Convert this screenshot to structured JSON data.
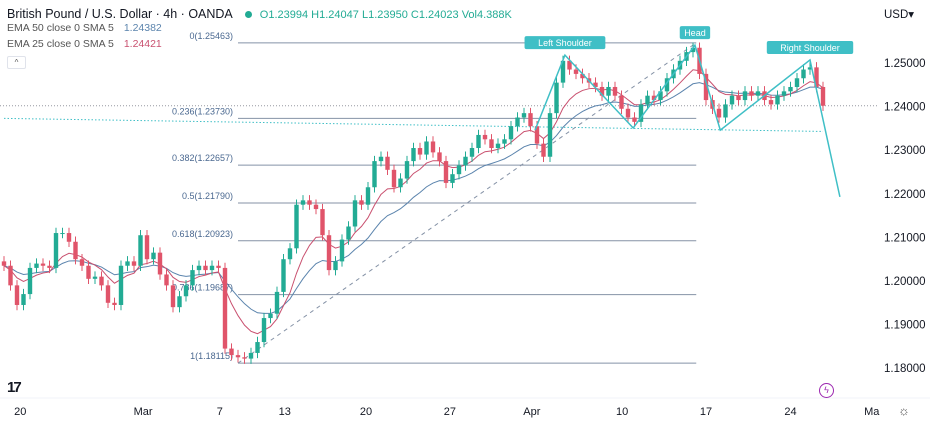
{
  "header": {
    "title": "British Pound / U.S. Dollar · 4h · OANDA",
    "open": "O1.23994",
    "high": "H1.24047",
    "low": "L1.23950",
    "close": "C1.24023",
    "volume": "Vol4.388K",
    "currency": "USD",
    "currency_caret": "▾",
    "collapse_glyph": "^"
  },
  "indicators": [
    {
      "label": "EMA 50 close 0 SMA 5",
      "value": "1.24382",
      "color": "#5b84ad"
    },
    {
      "label": "EMA 25 close 0 SMA 5",
      "value": "1.24421",
      "color": "#c9506f"
    }
  ],
  "colors": {
    "up": "#22ab94",
    "down": "#e0546a",
    "pattern": "#3fbfc6",
    "fib": "#8592a6",
    "grid": "#b2b5be"
  },
  "chart_data": {
    "type": "candlestick",
    "symbol": "GBPUSD",
    "ylim": [
      1.1755,
      1.2585
    ],
    "y_ticks": [
      "1.25000",
      "1.24000",
      "1.23000",
      "1.22000",
      "1.21000",
      "1.20000",
      "1.19000",
      "1.18000"
    ],
    "y_tick_values": [
      1.25,
      1.24,
      1.23,
      1.22,
      1.21,
      1.2,
      1.19,
      1.18
    ],
    "x_ticks": [
      {
        "label": "20",
        "index": 2.5
      },
      {
        "label": "Mar",
        "index": 21.4
      },
      {
        "label": "7",
        "index": 33.2
      },
      {
        "label": "13",
        "index": 43.2
      },
      {
        "label": "20",
        "index": 55.7
      },
      {
        "label": "27",
        "index": 68.6
      },
      {
        "label": "Apr",
        "index": 81.2
      },
      {
        "label": "10",
        "index": 95.1
      },
      {
        "label": "17",
        "index": 108
      },
      {
        "label": "24",
        "index": 121
      },
      {
        "label": "Ma",
        "index": 133.5
      }
    ],
    "first_open": 1.2045,
    "close": [
      1.2035,
      1.199,
      1.1945,
      1.197,
      1.203,
      1.204,
      1.2035,
      1.203,
      1.211,
      1.211,
      1.209,
      1.205,
      1.2035,
      1.2005,
      1.201,
      1.199,
      1.195,
      1.1945,
      1.2035,
      1.2045,
      1.2035,
      1.2105,
      1.205,
      1.2065,
      1.2015,
      1.199,
      1.194,
      1.1965,
      1.199,
      1.2025,
      1.2035,
      1.2025,
      1.2035,
      1.203,
      1.1845,
      1.183,
      1.1825,
      1.1822,
      1.1835,
      1.186,
      1.1915,
      1.1925,
      1.1975,
      1.205,
      1.2075,
      1.2175,
      1.2185,
      1.2175,
      1.2165,
      1.2105,
      1.2025,
      1.2045,
      1.2095,
      1.2125,
      1.2185,
      1.2175,
      1.2215,
      1.2275,
      1.2285,
      1.2255,
      1.2215,
      1.2235,
      1.2275,
      1.2305,
      1.229,
      1.232,
      1.2295,
      1.2275,
      1.2225,
      1.2245,
      1.2265,
      1.2285,
      1.2305,
      1.2335,
      1.2325,
      1.2305,
      1.2315,
      1.2325,
      1.2355,
      1.2375,
      1.2385,
      1.2355,
      1.2315,
      1.2285,
      1.2385,
      1.2455,
      1.2505,
      1.2485,
      1.2475,
      1.2465,
      1.2455,
      1.2445,
      1.2425,
      1.2445,
      1.2425,
      1.2395,
      1.2375,
      1.2365,
      1.2405,
      1.2425,
      1.2415,
      1.2435,
      1.2465,
      1.2485,
      1.2505,
      1.2525,
      1.2535,
      1.2475,
      1.2415,
      1.2395,
      1.2375,
      1.2405,
      1.2425,
      1.2415,
      1.2435,
      1.2425,
      1.2435,
      1.2415,
      1.2405,
      1.2425,
      1.2435,
      1.2445,
      1.2465,
      1.2485,
      1.249,
      1.2445,
      1.2402
    ],
    "current_price": 1.2402,
    "fibonacci": [
      {
        "label": "0(1.25463)",
        "price": 1.25463
      },
      {
        "label": "0.236(1.23730)",
        "price": 1.2373
      },
      {
        "label": "0.382(1.22657)",
        "price": 1.22657
      },
      {
        "label": "0.5(1.21790)",
        "price": 1.2179
      },
      {
        "label": "0.618(1.20923)",
        "price": 1.20923
      },
      {
        "label": "0.786(1.19687)",
        "price": 1.19687
      },
      {
        "label": "1(1.18115)",
        "price": 1.18115
      }
    ],
    "fib_range_index": [
      36,
      106.5
    ],
    "neckline": [
      {
        "index": 0,
        "price": 1.2373
      },
      {
        "index": 126,
        "price": 1.2343
      }
    ],
    "pattern_path": [
      {
        "index": 81.7,
        "price": 1.2346
      },
      {
        "index": 86.3,
        "price": 1.2518
      },
      {
        "index": 96.8,
        "price": 1.2351
      },
      {
        "index": 106.3,
        "price": 1.2541
      },
      {
        "index": 110.2,
        "price": 1.2346
      },
      {
        "index": 124,
        "price": 1.2507
      },
      {
        "index": 128.6,
        "price": 1.2193
      }
    ],
    "annotations": [
      {
        "text": "Left Shoulder",
        "index": 86.3,
        "price": 1.2518
      },
      {
        "text": "Head",
        "index": 106.3,
        "price": 1.2541
      },
      {
        "text": "Right Shoulder",
        "index": 124,
        "price": 1.2507
      }
    ]
  },
  "footer": {
    "logo": "TV",
    "bolt_glyph": "ϟ",
    "gear_glyph": "☼"
  }
}
